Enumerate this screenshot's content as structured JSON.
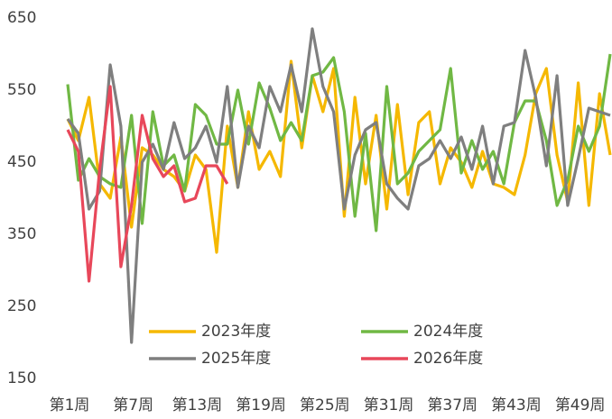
{
  "chart_data": {
    "type": "line",
    "categories": [
      "第1周",
      null,
      null,
      null,
      null,
      null,
      "第7周",
      null,
      null,
      null,
      null,
      null,
      "第13周",
      null,
      null,
      null,
      null,
      null,
      "第19周",
      null,
      null,
      null,
      null,
      null,
      "第25周",
      null,
      null,
      null,
      null,
      null,
      "第31周",
      null,
      null,
      null,
      null,
      null,
      "第37周",
      null,
      null,
      null,
      null,
      null,
      "第43周",
      null,
      null,
      null,
      null,
      null,
      "第49周",
      null,
      null,
      null
    ],
    "ylim": [
      150,
      650
    ],
    "yticks": [
      150,
      250,
      350,
      450,
      550,
      650
    ],
    "grid": false,
    "series": [
      {
        "name": "2023年度",
        "color": "#f5b800",
        "values": [
          510,
          480,
          540,
          420,
          400,
          485,
          360,
          470,
          460,
          440,
          430,
          410,
          460,
          440,
          325,
          500,
          415,
          520,
          440,
          465,
          430,
          590,
          470,
          570,
          520,
          580,
          375,
          540,
          420,
          515,
          385,
          530,
          405,
          505,
          520,
          420,
          470,
          450,
          415,
          465,
          420,
          415,
          405,
          460,
          545,
          580,
          460,
          395,
          560,
          390,
          545,
          460
        ]
      },
      {
        "name": "2024年度",
        "color": "#70b844",
        "values": [
          558,
          425,
          455,
          430,
          420,
          415,
          515,
          365,
          520,
          445,
          460,
          410,
          530,
          515,
          475,
          475,
          550,
          475,
          560,
          525,
          480,
          505,
          480,
          570,
          575,
          595,
          520,
          375,
          490,
          355,
          555,
          420,
          435,
          465,
          480,
          495,
          580,
          435,
          480,
          440,
          465,
          420,
          505,
          535,
          535,
          480,
          390,
          425,
          500,
          465,
          500,
          600
        ]
      },
      {
        "name": "2025年度",
        "color": "#7f7f7f",
        "values": [
          510,
          490,
          385,
          410,
          585,
          500,
          200,
          450,
          475,
          440,
          505,
          455,
          470,
          500,
          450,
          555,
          415,
          500,
          470,
          555,
          520,
          585,
          520,
          635,
          555,
          520,
          385,
          460,
          495,
          505,
          420,
          400,
          385,
          445,
          455,
          480,
          455,
          485,
          440,
          500,
          420,
          500,
          505,
          605,
          540,
          445,
          570,
          390,
          455,
          525,
          520,
          515
        ]
      },
      {
        "name": "2026年度",
        "color": "#e8475a",
        "values": [
          495,
          465,
          285,
          440,
          555,
          305,
          390,
          515,
          455,
          430,
          445,
          395,
          400,
          445,
          445,
          420,
          null,
          null,
          null,
          null,
          null,
          null,
          null,
          null,
          null,
          null,
          null,
          null,
          null,
          null,
          null,
          null,
          null,
          null,
          null,
          null,
          null,
          null,
          null,
          null,
          null,
          null,
          null,
          null,
          null,
          null,
          null,
          null,
          null,
          null,
          null,
          null
        ]
      }
    ]
  }
}
